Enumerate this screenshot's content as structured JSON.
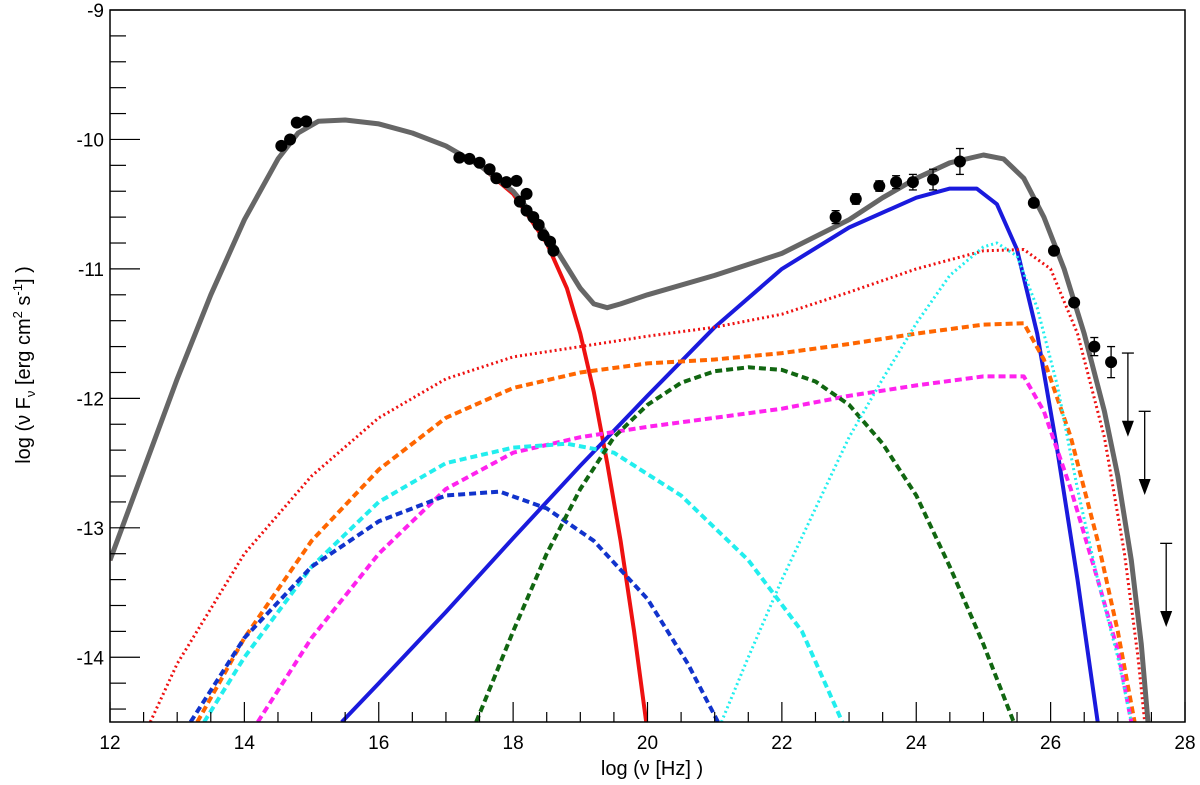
{
  "chart_data": {
    "type": "line",
    "title": "",
    "xlabel": "log (ν [Hz] )",
    "ylabel_parts": {
      "pre": "log (ν F",
      "sub": "ν",
      "mid": " [erg cm",
      "sup1": "2",
      "mid2": " s",
      "sup2": "-1",
      "post": "] )"
    },
    "xlim": [
      12,
      28
    ],
    "ylim": [
      -14.5,
      -9
    ],
    "x_tick_labels": [
      "12",
      "14",
      "16",
      "18",
      "20",
      "22",
      "24",
      "26",
      "28"
    ],
    "y_tick_labels": [
      "-14",
      "-13",
      "-12",
      "-11",
      "-10",
      "-9"
    ],
    "grid": false,
    "colors": {
      "total": "#666666",
      "red": "#ee1111",
      "blue": "#1a1add",
      "orange": "#ff6600",
      "magenta": "#ff22ee",
      "cyan": "#22eeee",
      "navy": "#1133cc",
      "green": "#116611",
      "points": "#000000"
    },
    "series": [
      {
        "key": "total",
        "color": "#666666",
        "dash": "solid",
        "width": 5,
        "points": [
          [
            12,
            -13.25
          ],
          [
            12.5,
            -12.55
          ],
          [
            13,
            -11.85
          ],
          [
            13.5,
            -11.2
          ],
          [
            14,
            -10.62
          ],
          [
            14.5,
            -10.15
          ],
          [
            14.8,
            -9.95
          ],
          [
            15.1,
            -9.86
          ],
          [
            15.5,
            -9.85
          ],
          [
            16,
            -9.88
          ],
          [
            16.5,
            -9.95
          ],
          [
            17,
            -10.05
          ],
          [
            17.5,
            -10.2
          ],
          [
            18,
            -10.4
          ],
          [
            18.4,
            -10.65
          ],
          [
            18.7,
            -10.9
          ],
          [
            19,
            -11.15
          ],
          [
            19.2,
            -11.27
          ],
          [
            19.4,
            -11.3
          ],
          [
            19.6,
            -11.27
          ],
          [
            20,
            -11.2
          ],
          [
            21,
            -11.05
          ],
          [
            22,
            -10.88
          ],
          [
            23,
            -10.62
          ],
          [
            23.5,
            -10.45
          ],
          [
            24,
            -10.3
          ],
          [
            24.5,
            -10.18
          ],
          [
            25,
            -10.12
          ],
          [
            25.3,
            -10.15
          ],
          [
            25.6,
            -10.3
          ],
          [
            25.9,
            -10.6
          ],
          [
            26.2,
            -11.0
          ],
          [
            26.5,
            -11.5
          ],
          [
            26.8,
            -12.1
          ],
          [
            27,
            -12.6
          ],
          [
            27.2,
            -13.25
          ],
          [
            27.35,
            -13.9
          ],
          [
            27.45,
            -14.5
          ]
        ]
      },
      {
        "key": "sync-red",
        "color": "#ee1111",
        "dash": "solid",
        "width": 4,
        "points": [
          [
            12,
            -13.25
          ],
          [
            12.5,
            -12.55
          ],
          [
            13,
            -11.85
          ],
          [
            13.5,
            -11.2
          ],
          [
            14,
            -10.62
          ],
          [
            14.5,
            -10.15
          ],
          [
            14.8,
            -9.95
          ],
          [
            15.1,
            -9.86
          ],
          [
            15.5,
            -9.85
          ],
          [
            16,
            -9.88
          ],
          [
            16.5,
            -9.95
          ],
          [
            17,
            -10.05
          ],
          [
            17.5,
            -10.2
          ],
          [
            18,
            -10.42
          ],
          [
            18.5,
            -10.8
          ],
          [
            18.8,
            -11.15
          ],
          [
            19,
            -11.5
          ],
          [
            19.2,
            -11.95
          ],
          [
            19.4,
            -12.5
          ],
          [
            19.6,
            -13.1
          ],
          [
            19.8,
            -13.8
          ],
          [
            19.98,
            -14.5
          ]
        ]
      },
      {
        "key": "ssc-blue",
        "color": "#1a1add",
        "dash": "solid",
        "width": 4,
        "points": [
          [
            15.45,
            -14.5
          ],
          [
            16,
            -14.2
          ],
          [
            17,
            -13.65
          ],
          [
            18,
            -13.08
          ],
          [
            19,
            -12.52
          ],
          [
            20,
            -11.98
          ],
          [
            21,
            -11.45
          ],
          [
            22,
            -11.0
          ],
          [
            23,
            -10.68
          ],
          [
            24,
            -10.45
          ],
          [
            24.5,
            -10.38
          ],
          [
            24.9,
            -10.38
          ],
          [
            25.2,
            -10.5
          ],
          [
            25.5,
            -10.85
          ],
          [
            25.8,
            -11.5
          ],
          [
            26.1,
            -12.4
          ],
          [
            26.4,
            -13.4
          ],
          [
            26.7,
            -14.5
          ]
        ]
      },
      {
        "key": "red-dotted",
        "color": "#ee1111",
        "dash": "dotted",
        "width": 3,
        "points": [
          [
            12.6,
            -14.5
          ],
          [
            13,
            -14.05
          ],
          [
            14,
            -13.2
          ],
          [
            15,
            -12.6
          ],
          [
            16,
            -12.15
          ],
          [
            17,
            -11.85
          ],
          [
            18,
            -11.68
          ],
          [
            19,
            -11.6
          ],
          [
            20,
            -11.52
          ],
          [
            21,
            -11.45
          ],
          [
            22,
            -11.35
          ],
          [
            23,
            -11.18
          ],
          [
            24,
            -11.0
          ],
          [
            25,
            -10.86
          ],
          [
            25.6,
            -10.85
          ],
          [
            26,
            -11.0
          ],
          [
            26.4,
            -11.5
          ],
          [
            26.8,
            -12.3
          ],
          [
            27.1,
            -13.2
          ],
          [
            27.3,
            -14.0
          ],
          [
            27.4,
            -14.5
          ]
        ]
      },
      {
        "key": "orange-dashed",
        "color": "#ff6600",
        "dash": "dashed",
        "width": 4,
        "points": [
          [
            13.3,
            -14.5
          ],
          [
            14,
            -13.85
          ],
          [
            15,
            -13.1
          ],
          [
            16,
            -12.55
          ],
          [
            17,
            -12.15
          ],
          [
            18,
            -11.92
          ],
          [
            19,
            -11.8
          ],
          [
            20,
            -11.73
          ],
          [
            21,
            -11.7
          ],
          [
            22,
            -11.65
          ],
          [
            23,
            -11.58
          ],
          [
            24,
            -11.5
          ],
          [
            25,
            -11.43
          ],
          [
            25.6,
            -11.42
          ],
          [
            25.9,
            -11.7
          ],
          [
            26.3,
            -12.3
          ],
          [
            26.7,
            -13.1
          ],
          [
            27,
            -13.8
          ],
          [
            27.25,
            -14.5
          ]
        ]
      },
      {
        "key": "magenta-dashed",
        "color": "#ff22ee",
        "dash": "dashed",
        "width": 4,
        "points": [
          [
            14.2,
            -14.5
          ],
          [
            15,
            -13.85
          ],
          [
            16,
            -13.2
          ],
          [
            17,
            -12.7
          ],
          [
            18,
            -12.42
          ],
          [
            19,
            -12.3
          ],
          [
            20,
            -12.22
          ],
          [
            21,
            -12.15
          ],
          [
            22,
            -12.08
          ],
          [
            23,
            -11.98
          ],
          [
            24,
            -11.9
          ],
          [
            25,
            -11.83
          ],
          [
            25.6,
            -11.83
          ],
          [
            25.9,
            -12.1
          ],
          [
            26.3,
            -12.7
          ],
          [
            26.7,
            -13.4
          ],
          [
            27,
            -13.95
          ],
          [
            27.2,
            -14.5
          ]
        ]
      },
      {
        "key": "cyan-dashed",
        "color": "#22eeee",
        "dash": "dashed",
        "width": 4,
        "points": [
          [
            13.4,
            -14.5
          ],
          [
            14,
            -14.0
          ],
          [
            15,
            -13.3
          ],
          [
            16,
            -12.8
          ],
          [
            17,
            -12.5
          ],
          [
            18,
            -12.38
          ],
          [
            18.8,
            -12.35
          ],
          [
            19.5,
            -12.42
          ],
          [
            20.5,
            -12.75
          ],
          [
            21.5,
            -13.25
          ],
          [
            22.3,
            -13.8
          ],
          [
            22.9,
            -14.5
          ]
        ]
      },
      {
        "key": "navy-dashed",
        "color": "#1133cc",
        "dash": "dashed",
        "width": 4,
        "points": [
          [
            13.2,
            -14.5
          ],
          [
            14,
            -13.85
          ],
          [
            15,
            -13.3
          ],
          [
            16,
            -12.95
          ],
          [
            17,
            -12.75
          ],
          [
            17.8,
            -12.72
          ],
          [
            18.5,
            -12.85
          ],
          [
            19.2,
            -13.1
          ],
          [
            20,
            -13.55
          ],
          [
            20.6,
            -14.05
          ],
          [
            21.05,
            -14.5
          ]
        ]
      },
      {
        "key": "green-dashed",
        "color": "#116611",
        "dash": "dashed",
        "width": 4,
        "points": [
          [
            17.45,
            -14.5
          ],
          [
            18,
            -13.8
          ],
          [
            18.5,
            -13.2
          ],
          [
            19,
            -12.7
          ],
          [
            19.5,
            -12.3
          ],
          [
            20,
            -12.05
          ],
          [
            20.5,
            -11.88
          ],
          [
            21,
            -11.79
          ],
          [
            21.5,
            -11.76
          ],
          [
            22,
            -11.78
          ],
          [
            22.5,
            -11.87
          ],
          [
            23,
            -12.05
          ],
          [
            23.5,
            -12.35
          ],
          [
            24,
            -12.75
          ],
          [
            24.5,
            -13.3
          ],
          [
            25,
            -13.9
          ],
          [
            25.45,
            -14.5
          ]
        ]
      },
      {
        "key": "cyan-dotted",
        "color": "#22eeee",
        "dash": "dotted",
        "width": 3,
        "points": [
          [
            21.1,
            -14.5
          ],
          [
            21.5,
            -14.0
          ],
          [
            22,
            -13.4
          ],
          [
            22.5,
            -12.85
          ],
          [
            23,
            -12.3
          ],
          [
            23.5,
            -11.85
          ],
          [
            24,
            -11.42
          ],
          [
            24.5,
            -11.05
          ],
          [
            25,
            -10.83
          ],
          [
            25.2,
            -10.8
          ],
          [
            25.5,
            -10.9
          ],
          [
            25.8,
            -11.3
          ],
          [
            26.1,
            -11.9
          ],
          [
            26.4,
            -12.7
          ],
          [
            26.7,
            -13.4
          ],
          [
            27,
            -14.0
          ],
          [
            27.2,
            -14.5
          ]
        ]
      }
    ],
    "data_points": [
      {
        "x": 14.55,
        "y": -10.05,
        "err": 0
      },
      {
        "x": 14.68,
        "y": -10.0,
        "err": 0
      },
      {
        "x": 14.78,
        "y": -9.87,
        "err": 0
      },
      {
        "x": 14.92,
        "y": -9.86,
        "err": 0
      },
      {
        "x": 17.2,
        "y": -10.14,
        "err": 0
      },
      {
        "x": 17.35,
        "y": -10.15,
        "err": 0
      },
      {
        "x": 17.5,
        "y": -10.18,
        "err": 0
      },
      {
        "x": 17.65,
        "y": -10.23,
        "err": 0
      },
      {
        "x": 17.75,
        "y": -10.3,
        "err": 0
      },
      {
        "x": 17.9,
        "y": -10.33,
        "err": 0
      },
      {
        "x": 18.05,
        "y": -10.32,
        "err": 0
      },
      {
        "x": 18.2,
        "y": -10.42,
        "err": 0
      },
      {
        "x": 18.1,
        "y": -10.48,
        "err": 0
      },
      {
        "x": 18.2,
        "y": -10.55,
        "err": 0
      },
      {
        "x": 18.3,
        "y": -10.6,
        "err": 0
      },
      {
        "x": 18.38,
        "y": -10.66,
        "err": 0
      },
      {
        "x": 18.45,
        "y": -10.74,
        "err": 0
      },
      {
        "x": 18.55,
        "y": -10.79,
        "err": 0
      },
      {
        "x": 18.6,
        "y": -10.86,
        "err": 0
      },
      {
        "x": 22.8,
        "y": -10.6,
        "err": 0.05
      },
      {
        "x": 23.1,
        "y": -10.46,
        "err": 0.04
      },
      {
        "x": 23.45,
        "y": -10.36,
        "err": 0.04
      },
      {
        "x": 23.7,
        "y": -10.33,
        "err": 0.05
      },
      {
        "x": 23.95,
        "y": -10.33,
        "err": 0.06
      },
      {
        "x": 24.25,
        "y": -10.31,
        "err": 0.08
      },
      {
        "x": 24.65,
        "y": -10.17,
        "err": 0.1
      },
      {
        "x": 25.75,
        "y": -10.49,
        "err": 0
      },
      {
        "x": 26.05,
        "y": -10.86,
        "err": 0
      },
      {
        "x": 26.35,
        "y": -11.26,
        "err": 0
      },
      {
        "x": 26.65,
        "y": -11.6,
        "err": 0.07
      },
      {
        "x": 26.9,
        "y": -11.72,
        "err": 0.12
      }
    ],
    "upper_limits": [
      {
        "x": 27.15,
        "y": -11.65,
        "len": 0.6
      },
      {
        "x": 27.4,
        "y": -12.1,
        "len": 0.6
      },
      {
        "x": 27.72,
        "y": -13.12,
        "len": 0.6
      }
    ]
  }
}
